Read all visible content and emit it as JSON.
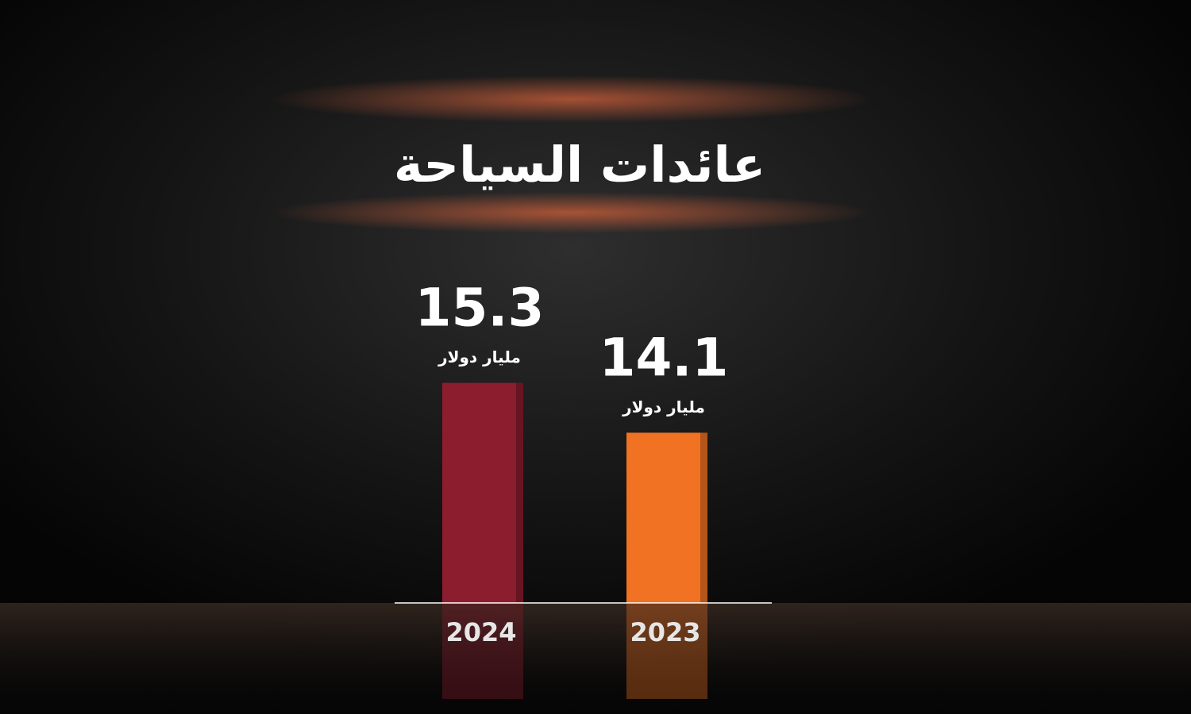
{
  "chart_data": {
    "type": "bar",
    "title": "عائدات السياحة",
    "categories": [
      "2024",
      "2023"
    ],
    "values": [
      15.3,
      14.1
    ],
    "unit": "مليار دولار",
    "colors": [
      "#8b1d2f",
      "#f07222"
    ],
    "ylim": [
      10,
      16
    ]
  }
}
